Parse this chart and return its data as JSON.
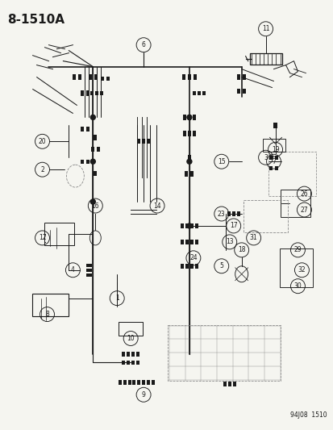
{
  "title": "8-1510A",
  "watermark": "94J08  1510",
  "bg_color": "#f5f5f0",
  "line_color": "#1a1a1a",
  "title_fontsize": 11,
  "watermark_fontsize": 5.5
}
